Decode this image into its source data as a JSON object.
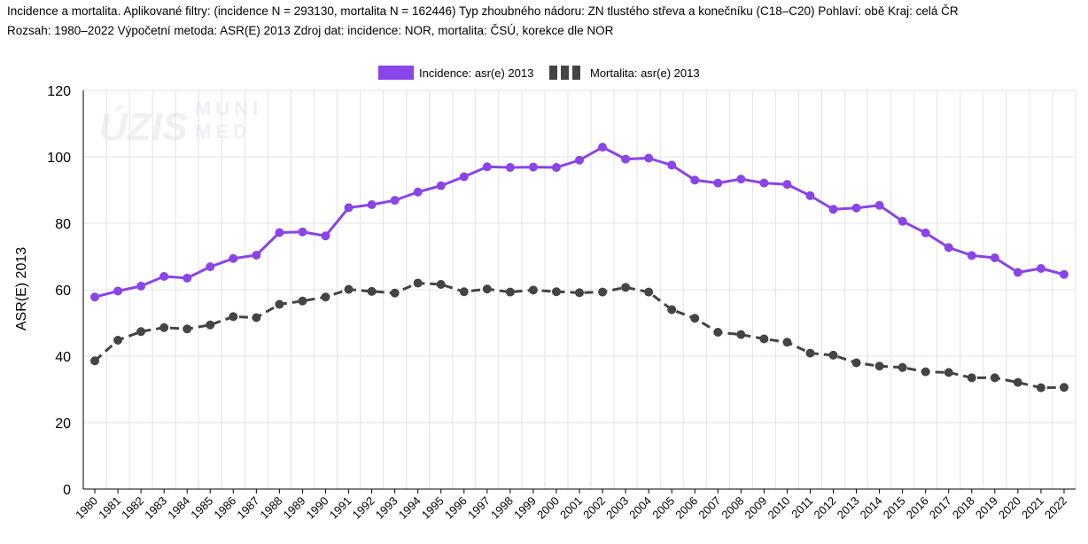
{
  "header": {
    "line1": "Incidence a mortalita. Aplikované filtry: (incidence N = 293130, mortalita N = 162446) Typ zhoubného nádoru: ZN tlustého střeva a konečníku (C18–C20) Pohlaví: obě Kraj: celá ČR",
    "line2": "Rozsah: 1980–2022 Výpočetní metoda: ASR(E) 2013 Zdroj dat: incidence: NOR, mortalita: ČSÚ, korekce dle NOR"
  },
  "watermarks": {
    "left": "ÚZIS",
    "right_top": "MUNI",
    "right_bottom": "MED"
  },
  "colors": {
    "incidence": "#8a44e8",
    "mortality": "#444444",
    "grid": "#e3e3e3"
  },
  "chart_data": {
    "type": "line",
    "title": "",
    "xlabel": "",
    "ylabel": "ASR(E) 2013",
    "ylim": [
      0,
      120
    ],
    "yticks": [
      0,
      20,
      40,
      60,
      80,
      100,
      120
    ],
    "grid": true,
    "legend_position": "top-center",
    "categories": [
      "1980",
      "1981",
      "1982",
      "1983",
      "1984",
      "1985",
      "1986",
      "1987",
      "1988",
      "1989",
      "1990",
      "1991",
      "1992",
      "1993",
      "1994",
      "1995",
      "1996",
      "1997",
      "1998",
      "1999",
      "2000",
      "2001",
      "2002",
      "2003",
      "2004",
      "2005",
      "2006",
      "2007",
      "2008",
      "2009",
      "2010",
      "2011",
      "2012",
      "2013",
      "2014",
      "2015",
      "2016",
      "2017",
      "2018",
      "2019",
      "2020",
      "2021",
      "2022"
    ],
    "series": [
      {
        "name": "Incidence: asr(e) 2013",
        "style": "solid",
        "values": [
          57.8,
          59.6,
          61.1,
          64.0,
          63.5,
          66.9,
          69.4,
          70.4,
          77.2,
          77.4,
          76.2,
          84.7,
          85.6,
          86.9,
          89.4,
          91.3,
          94.0,
          97.0,
          96.8,
          96.9,
          96.8,
          99.0,
          102.9,
          99.3,
          99.6,
          97.5,
          93.0,
          92.1,
          93.3,
          92.1,
          91.7,
          88.3,
          84.2,
          84.6,
          85.4,
          80.6,
          77.1,
          72.7,
          70.3,
          69.6,
          65.2,
          66.4,
          64.6
        ]
      },
      {
        "name": "Mortalita: asr(e) 2013",
        "style": "dashed",
        "values": [
          38.6,
          44.8,
          47.4,
          48.6,
          48.2,
          49.4,
          51.9,
          51.6,
          55.6,
          56.6,
          57.8,
          60.1,
          59.5,
          59.0,
          62.0,
          61.6,
          59.4,
          60.2,
          59.3,
          59.9,
          59.4,
          59.1,
          59.3,
          60.7,
          59.3,
          54.0,
          51.4,
          47.2,
          46.5,
          45.2,
          44.2,
          40.9,
          40.3,
          38.0,
          37.0,
          36.6,
          35.3,
          35.1,
          33.5,
          33.5,
          32.1,
          30.5,
          30.6
        ]
      }
    ]
  }
}
